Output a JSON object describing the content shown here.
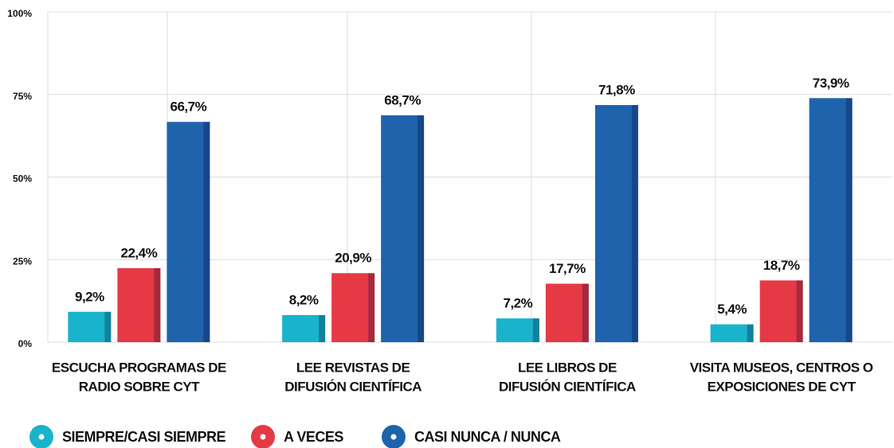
{
  "chart_data": {
    "type": "bar",
    "categories": [
      [
        "ESCUCHA PROGRAMAS DE",
        "RADIO SOBRE CYT"
      ],
      [
        "LEE REVISTAS DE",
        "DIFUSIÓN CIENTÍFICA"
      ],
      [
        "LEE LIBROS DE",
        "DIFUSIÓN CIENTÍFICA"
      ],
      [
        "VISITA MUSEOS, CENTROS O",
        "EXPOSICIONES DE CYT"
      ]
    ],
    "series": [
      {
        "name": "SIEMPRE/CASI SIEMPRE",
        "color": "#1ab3cc",
        "values": [
          9.2,
          8.2,
          7.2,
          5.4
        ],
        "value_labels": [
          "9,2%",
          "8,2%",
          "7,2%",
          "5,4%"
        ]
      },
      {
        "name": "A VECES",
        "color": "#e63946",
        "values": [
          22.4,
          20.9,
          17.7,
          18.7
        ],
        "value_labels": [
          "22,4%",
          "20,9%",
          "17,7%",
          "18,7%"
        ]
      },
      {
        "name": "CASI NUNCA / NUNCA",
        "color": "#1f63ad",
        "values": [
          66.7,
          68.7,
          71.8,
          73.9
        ],
        "value_labels": [
          "66,7%",
          "68,7%",
          "71,8%",
          "73,9%"
        ]
      }
    ],
    "ylim": [
      0,
      100
    ],
    "yticks": [
      {
        "value": 0,
        "label": "0%"
      },
      {
        "value": 25,
        "label": "25%"
      },
      {
        "value": 50,
        "label": "50%"
      },
      {
        "value": 75,
        "label": "75%"
      },
      {
        "value": 100,
        "label": "100%"
      }
    ],
    "grid": true,
    "legend": "bottom"
  }
}
